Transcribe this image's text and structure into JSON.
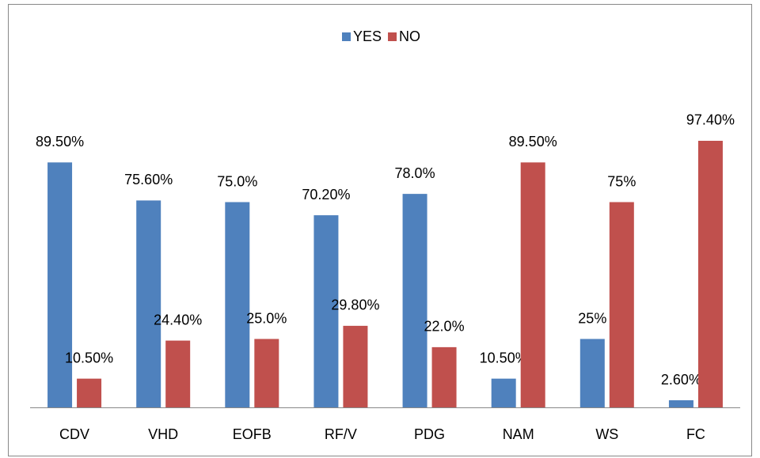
{
  "chart_data": {
    "type": "bar",
    "categories": [
      "CDV",
      "VHD",
      "EOFB",
      "RF/V",
      "PDG",
      "NAM",
      "WS",
      "FC"
    ],
    "series": [
      {
        "name": "YES",
        "color": "#4f81bd",
        "values": [
          89.5,
          75.6,
          75.0,
          70.2,
          78.0,
          10.5,
          25,
          2.6
        ],
        "value_labels": [
          "89.50%",
          "75.60%",
          "75.0%",
          "70.20%",
          "78.0%",
          "10.50%",
          "25%",
          "2.60%"
        ]
      },
      {
        "name": "NO",
        "color": "#c0504d",
        "values": [
          10.5,
          24.4,
          25.0,
          29.8,
          22.0,
          89.5,
          75,
          97.4
        ],
        "value_labels": [
          "10.50%",
          "24.40%",
          "25.0%",
          "29.80%",
          "22.0%",
          "89.50%",
          "75%",
          "97.40%"
        ]
      }
    ],
    "ylim": [
      0,
      100
    ],
    "legend": "top"
  }
}
